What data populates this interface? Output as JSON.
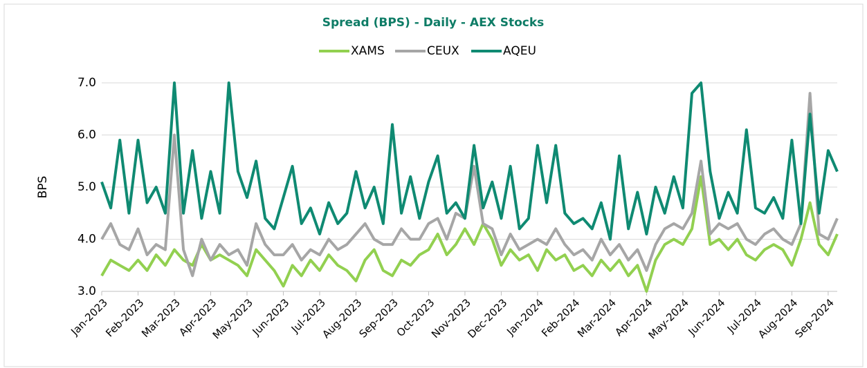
{
  "chart_data": {
    "type": "line",
    "title": "Spread (BPS) - Daily - AEX Stocks",
    "y_label": "BPS",
    "categories": [
      "Jan-2023",
      null,
      null,
      null,
      "Feb-2023",
      null,
      null,
      null,
      "Mar-2023",
      null,
      null,
      null,
      "Apr-2023",
      null,
      null,
      null,
      "May-2023",
      null,
      null,
      null,
      "Jun-2023",
      null,
      null,
      null,
      "Jul-2023",
      null,
      null,
      null,
      "Aug-2023",
      null,
      null,
      null,
      "Sep-2023",
      null,
      null,
      null,
      "Oct-2023",
      null,
      null,
      null,
      "Nov-2023",
      null,
      null,
      null,
      "Dec-2023",
      null,
      null,
      null,
      "Jan-2024",
      null,
      null,
      null,
      "Feb-2024",
      null,
      null,
      null,
      "Mar-2024",
      null,
      null,
      null,
      "Apr-2024",
      null,
      null,
      null,
      "May-2024",
      null,
      null,
      null,
      "Jun-2024",
      null,
      null,
      null,
      "Jul-2024",
      null,
      null,
      null,
      "Aug-2024",
      null,
      null,
      null,
      "Sep-2024",
      null
    ],
    "series": [
      {
        "name": "XAMS",
        "color": "#92d050",
        "values": [
          3.3,
          3.6,
          3.5,
          3.4,
          3.6,
          3.4,
          3.7,
          3.5,
          3.8,
          3.6,
          3.5,
          3.9,
          3.6,
          3.7,
          3.6,
          3.5,
          3.3,
          3.8,
          3.6,
          3.4,
          3.1,
          3.5,
          3.3,
          3.6,
          3.4,
          3.7,
          3.5,
          3.4,
          3.2,
          3.6,
          3.8,
          3.4,
          3.3,
          3.6,
          3.5,
          3.7,
          3.8,
          4.1,
          3.7,
          3.9,
          4.2,
          3.9,
          4.3,
          4.0,
          3.5,
          3.8,
          3.6,
          3.7,
          3.4,
          3.8,
          3.6,
          3.7,
          3.4,
          3.5,
          3.3,
          3.6,
          3.4,
          3.6,
          3.3,
          3.5,
          3.0,
          3.6,
          3.9,
          4.0,
          3.9,
          4.2,
          5.2,
          3.9,
          4.0,
          3.8,
          4.0,
          3.7,
          3.6,
          3.8,
          3.9,
          3.8,
          3.5,
          4.0,
          4.7,
          3.9,
          3.7,
          4.1
        ]
      },
      {
        "name": "CEUX",
        "color": "#a6a6a6",
        "values": [
          4.0,
          4.3,
          3.9,
          3.8,
          4.2,
          3.7,
          3.9,
          3.8,
          6.0,
          3.8,
          3.3,
          4.0,
          3.6,
          3.9,
          3.7,
          3.8,
          3.5,
          4.3,
          3.9,
          3.7,
          3.7,
          3.9,
          3.6,
          3.8,
          3.7,
          4.0,
          3.8,
          3.9,
          4.1,
          4.3,
          4.0,
          3.9,
          3.9,
          4.2,
          4.0,
          4.0,
          4.3,
          4.4,
          4.0,
          4.5,
          4.4,
          5.4,
          4.3,
          4.2,
          3.7,
          4.1,
          3.8,
          3.9,
          4.0,
          3.9,
          4.2,
          3.9,
          3.7,
          3.8,
          3.6,
          4.0,
          3.7,
          3.9,
          3.6,
          3.8,
          3.4,
          3.9,
          4.2,
          4.3,
          4.2,
          4.5,
          5.5,
          4.1,
          4.3,
          4.2,
          4.3,
          4.0,
          3.9,
          4.1,
          4.2,
          4.0,
          3.9,
          4.3,
          6.8,
          4.1,
          4.0,
          4.4
        ]
      },
      {
        "name": "AQEU",
        "color": "#0f8a72",
        "values": [
          5.1,
          4.6,
          5.9,
          4.5,
          5.9,
          4.7,
          5.0,
          4.5,
          7.0,
          4.5,
          5.7,
          4.4,
          5.3,
          4.5,
          7.0,
          5.3,
          4.8,
          5.5,
          4.4,
          4.2,
          4.8,
          5.4,
          4.3,
          4.6,
          4.1,
          4.7,
          4.3,
          4.5,
          5.3,
          4.6,
          5.0,
          4.3,
          6.2,
          4.5,
          5.2,
          4.4,
          5.1,
          5.6,
          4.5,
          4.7,
          4.4,
          5.8,
          4.6,
          5.1,
          4.4,
          5.4,
          4.2,
          4.4,
          5.8,
          4.7,
          5.8,
          4.5,
          4.3,
          4.4,
          4.2,
          4.7,
          4.0,
          5.6,
          4.2,
          4.9,
          4.1,
          5.0,
          4.5,
          5.2,
          4.6,
          6.8,
          7.0,
          5.3,
          4.4,
          4.9,
          4.5,
          6.1,
          4.6,
          4.5,
          4.8,
          4.4,
          5.9,
          4.3,
          6.4,
          4.5,
          5.7,
          5.3
        ]
      }
    ],
    "ylim": [
      3,
      7
    ],
    "yticks": [
      {
        "value": 3,
        "label": "3.0"
      },
      {
        "value": 4,
        "label": "4.0"
      },
      {
        "value": 5,
        "label": "5.0"
      },
      {
        "value": 6,
        "label": "6.0"
      },
      {
        "value": 7,
        "label": "7.0"
      }
    ],
    "grid": true,
    "legend": "top"
  }
}
